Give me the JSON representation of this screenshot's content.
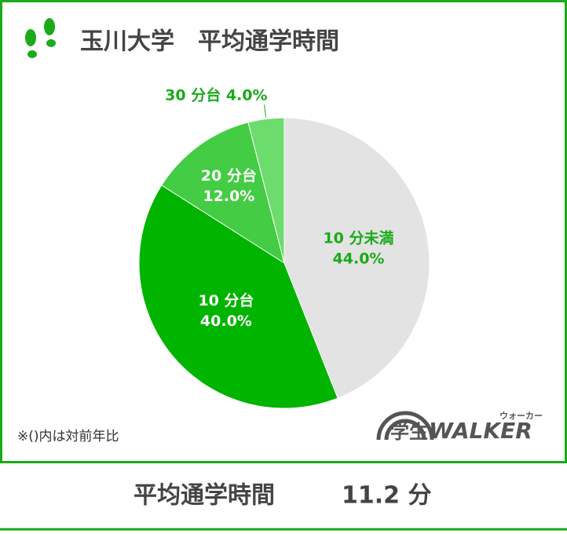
{
  "chart_data": {
    "type": "pie",
    "title": "玉川大学　平均通学時間",
    "categories": [
      "10 分未満",
      "10 分台",
      "20 分台",
      "30 分台"
    ],
    "values": [
      44.0,
      40.0,
      12.0,
      4.0
    ],
    "value_labels": [
      "44.0%",
      "40.0%",
      "12.0%",
      "4.0%"
    ],
    "colors": [
      "#e3e3e3",
      "#00b400",
      "#44cc44",
      "#6cdc6c"
    ],
    "note": "※()内は対前年比"
  },
  "logo": {
    "text": "学生",
    "brand": "WALKER",
    "reading": "ウォーカー"
  },
  "footer": {
    "label": "平均通学時間",
    "value": "11.2 分"
  }
}
